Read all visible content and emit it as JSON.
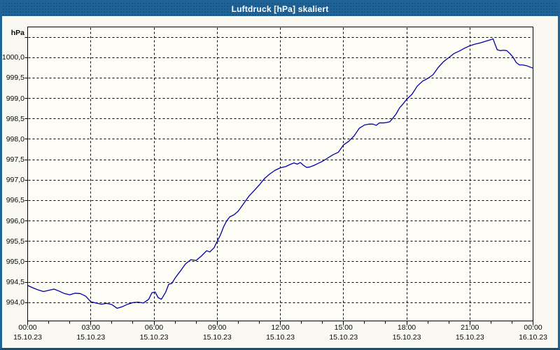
{
  "window": {
    "title": "Luftdruck [hPa] skaliert"
  },
  "colors": {
    "titlebar_bg": "#1e6499",
    "window_border": "#1e6499",
    "curve": "#0000a8",
    "grid": "#000000",
    "axis_text": "#0a0a0a",
    "canvas_bg": "#f9f9f1",
    "plot_bg": "#fdfdf6",
    "title_text": "#ffffff"
  },
  "chart_data": {
    "type": "line",
    "title": "Luftdruck [hPa] skaliert",
    "unit": "hPa",
    "xlabel": "",
    "ylabel": "hPa",
    "grid": "dashed",
    "legend": "none",
    "xlim_hours": [
      0,
      24
    ],
    "ylim": [
      993.55,
      1000.75
    ],
    "x_minor_tick_hours": 1,
    "y_gridline_step": 0.5,
    "y_gridlines_unlabeled": [
      1000.5
    ],
    "y_ticks": [
      {
        "value": 1000.0,
        "label": "1000,0"
      },
      {
        "value": 999.5,
        "label": "999,5"
      },
      {
        "value": 999.0,
        "label": "999,0"
      },
      {
        "value": 998.5,
        "label": "998,5"
      },
      {
        "value": 998.0,
        "label": "998,0"
      },
      {
        "value": 997.5,
        "label": "997,5"
      },
      {
        "value": 997.0,
        "label": "997,0"
      },
      {
        "value": 996.5,
        "label": "996,5"
      },
      {
        "value": 996.0,
        "label": "996,0"
      },
      {
        "value": 995.5,
        "label": "995,5"
      },
      {
        "value": 995.0,
        "label": "995,0"
      },
      {
        "value": 994.5,
        "label": "994,5"
      },
      {
        "value": 994.0,
        "label": "994,0"
      }
    ],
    "x_ticks": [
      {
        "hour": 0,
        "time": "00:00",
        "date": "15.10.23"
      },
      {
        "hour": 3,
        "time": "03:00",
        "date": "15.10.23"
      },
      {
        "hour": 6,
        "time": "06:00",
        "date": "15.10.23"
      },
      {
        "hour": 9,
        "time": "09:00",
        "date": "15.10.23"
      },
      {
        "hour": 12,
        "time": "12:00",
        "date": "15.10.23"
      },
      {
        "hour": 15,
        "time": "15:00",
        "date": "15.10.23"
      },
      {
        "hour": 18,
        "time": "18:00",
        "date": "15.10.23"
      },
      {
        "hour": 21,
        "time": "21:00",
        "date": "15.10.23"
      },
      {
        "hour": 24,
        "time": "00:00",
        "date": "16.10.23"
      }
    ],
    "series": [
      {
        "name": "Luftdruck [hPa]",
        "color": "#0000a8",
        "points": [
          [
            0,
            994.42
          ],
          [
            0.25,
            994.36
          ],
          [
            0.5,
            994.31
          ],
          [
            0.75,
            994.27
          ],
          [
            1,
            994.3
          ],
          [
            1.25,
            994.33
          ],
          [
            1.5,
            994.28
          ],
          [
            1.75,
            994.22
          ],
          [
            2,
            994.19
          ],
          [
            2.25,
            994.23
          ],
          [
            2.5,
            994.22
          ],
          [
            2.75,
            994.16
          ],
          [
            3,
            994.02
          ],
          [
            3.25,
            993.99
          ],
          [
            3.5,
            993.96
          ],
          [
            3.75,
            993.98
          ],
          [
            4,
            993.95
          ],
          [
            4.25,
            993.86
          ],
          [
            4.5,
            993.9
          ],
          [
            4.75,
            993.96
          ],
          [
            5,
            994.0
          ],
          [
            5.25,
            994.01
          ],
          [
            5.5,
            993.99
          ],
          [
            5.75,
            994.08
          ],
          [
            5.9,
            994.24
          ],
          [
            6.05,
            994.26
          ],
          [
            6.2,
            994.12
          ],
          [
            6.35,
            994.08
          ],
          [
            6.55,
            994.25
          ],
          [
            6.7,
            994.45
          ],
          [
            6.85,
            994.47
          ],
          [
            7,
            994.6
          ],
          [
            7.25,
            994.77
          ],
          [
            7.5,
            994.95
          ],
          [
            7.75,
            995.05
          ],
          [
            8,
            995.03
          ],
          [
            8.25,
            995.14
          ],
          [
            8.5,
            995.27
          ],
          [
            8.65,
            995.24
          ],
          [
            8.85,
            995.34
          ],
          [
            9,
            995.5
          ],
          [
            9.15,
            995.65
          ],
          [
            9.3,
            995.85
          ],
          [
            9.45,
            996.0
          ],
          [
            9.6,
            996.1
          ],
          [
            9.8,
            996.15
          ],
          [
            10,
            996.24
          ],
          [
            10.25,
            996.42
          ],
          [
            10.5,
            996.6
          ],
          [
            10.75,
            996.74
          ],
          [
            11,
            996.88
          ],
          [
            11.25,
            997.04
          ],
          [
            11.5,
            997.15
          ],
          [
            11.75,
            997.24
          ],
          [
            12,
            997.3
          ],
          [
            12.25,
            997.33
          ],
          [
            12.5,
            997.39
          ],
          [
            12.65,
            997.42
          ],
          [
            12.8,
            997.39
          ],
          [
            12.95,
            997.43
          ],
          [
            13.1,
            997.36
          ],
          [
            13.25,
            997.31
          ],
          [
            13.4,
            997.32
          ],
          [
            13.6,
            997.36
          ],
          [
            13.8,
            997.41
          ],
          [
            14,
            997.46
          ],
          [
            14.25,
            997.54
          ],
          [
            14.5,
            997.62
          ],
          [
            14.75,
            997.68
          ],
          [
            15,
            997.86
          ],
          [
            15.25,
            997.95
          ],
          [
            15.5,
            998.08
          ],
          [
            15.75,
            998.27
          ],
          [
            16,
            998.35
          ],
          [
            16.2,
            998.37
          ],
          [
            16.4,
            998.37
          ],
          [
            16.55,
            998.34
          ],
          [
            16.7,
            998.4
          ],
          [
            16.9,
            998.4
          ],
          [
            17.05,
            998.41
          ],
          [
            17.2,
            998.43
          ],
          [
            17.35,
            998.52
          ],
          [
            17.5,
            998.62
          ],
          [
            17.65,
            998.76
          ],
          [
            17.85,
            998.88
          ],
          [
            18,
            998.98
          ],
          [
            18.25,
            999.1
          ],
          [
            18.5,
            999.3
          ],
          [
            18.75,
            999.42
          ],
          [
            19,
            999.49
          ],
          [
            19.25,
            999.58
          ],
          [
            19.5,
            999.76
          ],
          [
            19.75,
            999.9
          ],
          [
            20,
            1000.0
          ],
          [
            20.25,
            1000.1
          ],
          [
            20.5,
            1000.16
          ],
          [
            20.75,
            1000.23
          ],
          [
            21,
            1000.29
          ],
          [
            21.25,
            1000.33
          ],
          [
            21.5,
            1000.36
          ],
          [
            21.75,
            1000.4
          ],
          [
            22,
            1000.44
          ],
          [
            22.1,
            1000.46
          ],
          [
            22.2,
            1000.32
          ],
          [
            22.3,
            1000.19
          ],
          [
            22.45,
            1000.17
          ],
          [
            22.6,
            1000.18
          ],
          [
            22.75,
            1000.17
          ],
          [
            22.9,
            1000.1
          ],
          [
            23.05,
            1000.01
          ],
          [
            23.2,
            999.88
          ],
          [
            23.35,
            999.82
          ],
          [
            23.5,
            999.82
          ],
          [
            23.7,
            999.8
          ],
          [
            23.85,
            999.77
          ],
          [
            24,
            999.74
          ]
        ]
      }
    ]
  }
}
